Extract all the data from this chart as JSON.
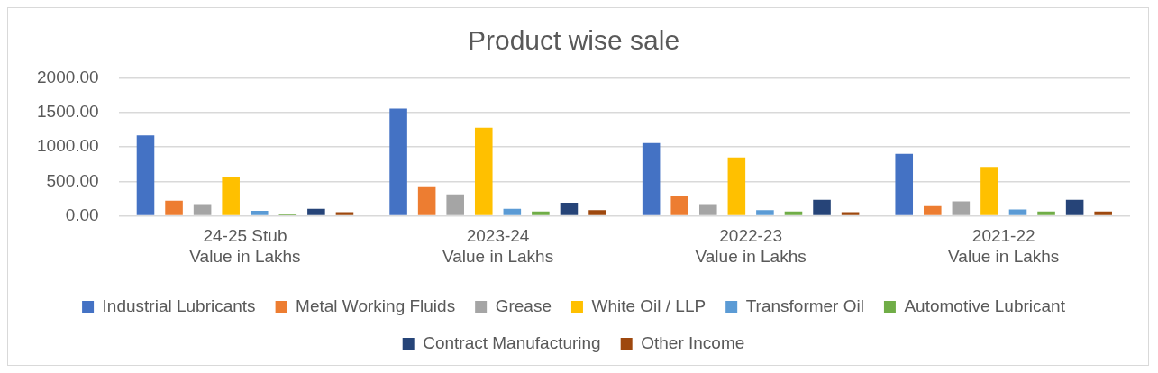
{
  "chart_data": {
    "type": "bar",
    "title": "Product wise sale",
    "categories": [
      "24-25 Stub\nValue in Lakhs",
      "2023-24\nValue in Lakhs",
      "2022-23\nValue in Lakhs",
      "2021-22\nValue in Lakhs"
    ],
    "series": [
      {
        "name": "Industrial Lubricants",
        "color": "#4472c4",
        "values": [
          1170,
          1560,
          1060,
          900
        ]
      },
      {
        "name": "Metal Working Fluids",
        "color": "#ed7d31",
        "values": [
          220,
          430,
          290,
          140
        ]
      },
      {
        "name": "Grease",
        "color": "#a5a5a5",
        "values": [
          170,
          310,
          170,
          210
        ]
      },
      {
        "name": "White Oil / LLP",
        "color": "#ffc000",
        "values": [
          560,
          1280,
          850,
          710
        ]
      },
      {
        "name": "Transformer Oil",
        "color": "#5b9bd5",
        "values": [
          70,
          100,
          80,
          90
        ]
      },
      {
        "name": "Automotive Lubricant",
        "color": "#70ad47",
        "values": [
          20,
          60,
          60,
          60
        ]
      },
      {
        "name": "Contract Manufacturing",
        "color": "#264478",
        "values": [
          100,
          190,
          230,
          230
        ]
      },
      {
        "name": "Other Income",
        "color": "#9e480e",
        "values": [
          50,
          80,
          50,
          60
        ]
      }
    ],
    "ylim": [
      0,
      2000
    ],
    "yticks": [
      {
        "value": 0,
        "label": "0.00"
      },
      {
        "value": 500,
        "label": "500.00"
      },
      {
        "value": 1000,
        "label": "1000.00"
      },
      {
        "value": 1500,
        "label": "1500.00"
      },
      {
        "value": 2000,
        "label": "2000.00"
      }
    ],
    "grid": "y",
    "legend": "bottom"
  }
}
